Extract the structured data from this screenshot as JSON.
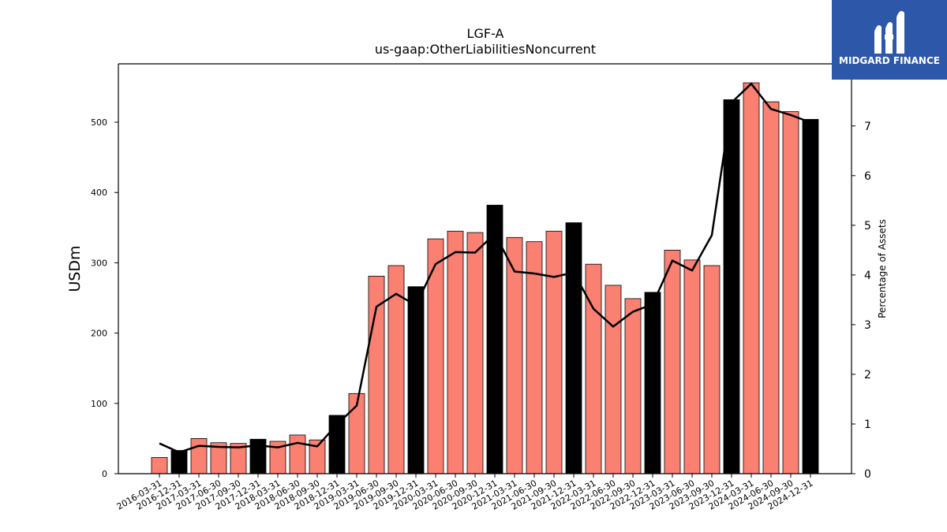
{
  "brand": {
    "name": "MIDGARD FINANCE",
    "bg_color": "#2d57a8",
    "text_color": "#ffffff"
  },
  "chart_data": {
    "type": "bar",
    "title": "LGF-A",
    "subtitle": "us-gaap:OtherLiabilitiesNoncurrent",
    "ylabel": "USDm",
    "y2label": "Percentage of Assets",
    "ylim": [
      0,
      583
    ],
    "y2lim": [
      0,
      8.25
    ],
    "yticks": [
      0,
      100,
      200,
      300,
      400,
      500
    ],
    "y2ticks": [
      0,
      1,
      2,
      3,
      4,
      5,
      6,
      7
    ],
    "colors": {
      "quarter": "#fa8072",
      "fiscal_year_end": "#000000",
      "line": "#000000"
    },
    "categories": [
      "2016-03-31",
      "2016-12-31",
      "2017-03-31",
      "2017-06-30",
      "2017-09-30",
      "2017-12-31",
      "2018-03-31",
      "2018-06-30",
      "2018-09-30",
      "2018-12-31",
      "2019-03-31",
      "2019-06-30",
      "2019-09-30",
      "2019-12-31",
      "2020-03-31",
      "2020-06-30",
      "2020-09-30",
      "2020-12-31",
      "2021-03-31",
      "2021-06-30",
      "2021-09-30",
      "2021-12-31",
      "2022-03-31",
      "2022-06-30",
      "2022-09-30",
      "2022-12-31",
      "2023-03-31",
      "2023-06-30",
      "2023-09-30",
      "2023-12-31",
      "2024-03-31",
      "2024-06-30",
      "2024-09-30",
      "2024-12-31"
    ],
    "series": [
      {
        "type": "bar",
        "values": [
          23,
          33,
          50,
          44,
          43,
          49,
          46,
          55,
          48,
          83,
          114,
          281,
          296,
          266,
          334,
          345,
          343,
          382,
          336,
          330,
          345,
          357,
          298,
          268,
          249,
          258,
          318,
          304,
          296,
          532,
          556,
          529,
          515,
          504
        ],
        "highlight": [
          false,
          true,
          false,
          false,
          false,
          true,
          false,
          false,
          false,
          true,
          false,
          false,
          false,
          true,
          false,
          false,
          false,
          true,
          false,
          false,
          false,
          true,
          false,
          false,
          false,
          true,
          false,
          false,
          false,
          true,
          false,
          false,
          false,
          true
        ]
      },
      {
        "type": "line",
        "axis": "right",
        "values": [
          0.61,
          0.43,
          0.56,
          0.54,
          0.53,
          0.57,
          0.53,
          0.62,
          0.55,
          0.99,
          1.37,
          3.36,
          3.62,
          3.39,
          4.22,
          4.46,
          4.45,
          4.83,
          4.07,
          4.03,
          3.96,
          4.05,
          3.32,
          2.96,
          3.26,
          3.41,
          4.29,
          4.09,
          4.8,
          7.47,
          7.85,
          7.34,
          7.22,
          7.07
        ]
      }
    ]
  }
}
